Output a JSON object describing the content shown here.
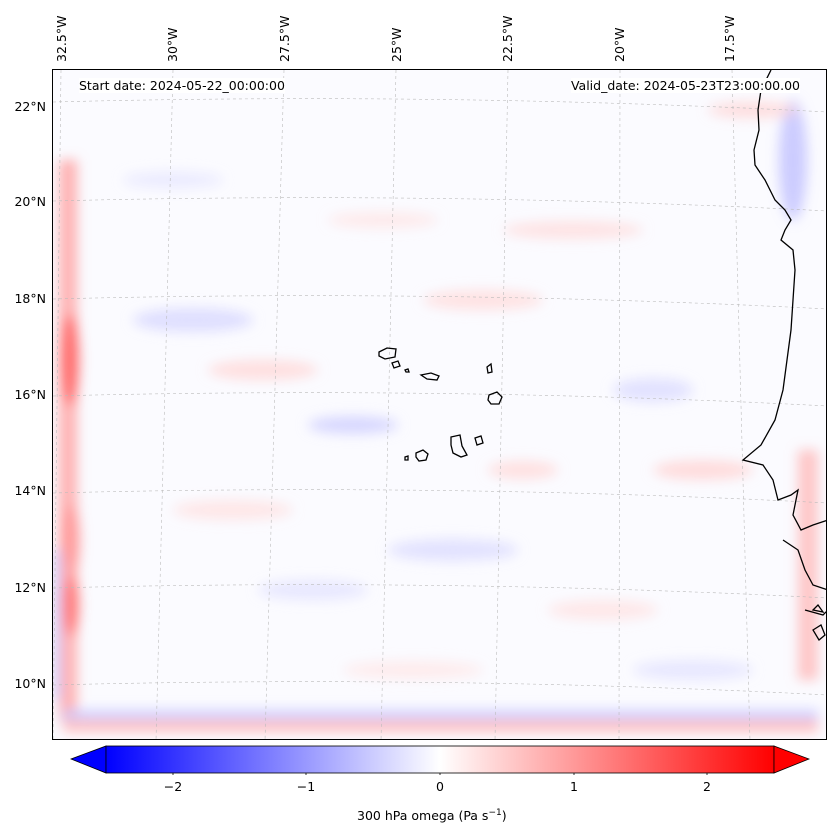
{
  "header": {
    "start_date": "Start date: 2024-05-22_00:00:00",
    "valid_date": "Valid_date: 2024-05-23T23:00:00.00"
  },
  "longitude_labels": [
    "32.5°W",
    "30°W",
    "27.5°W",
    "25°W",
    "22.5°W",
    "20°W",
    "17.5°W"
  ],
  "latitude_labels": [
    "22°N",
    "20°N",
    "18°N",
    "16°N",
    "14°N",
    "12°N",
    "10°N"
  ],
  "colorbar": {
    "label": "300 hPa omega (Pa s",
    "label_exponent": "−1",
    "label_suffix": ")",
    "ticks": [
      "−2",
      "−1",
      "0",
      "1",
      "2"
    ],
    "min": -2.5,
    "max": 2.5,
    "colormap": "bwr",
    "extend": "both"
  },
  "colors": {
    "negative": "#0000ff",
    "positive": "#ff0000",
    "neutral": "#ffffff",
    "coastline": "#000000",
    "gridline": "#bbbbbb"
  },
  "map": {
    "variable": "300 hPa omega",
    "features": [
      "coastline",
      "cape-verde-islands",
      "west-african-coast",
      "lat-lon-gridlines"
    ]
  }
}
